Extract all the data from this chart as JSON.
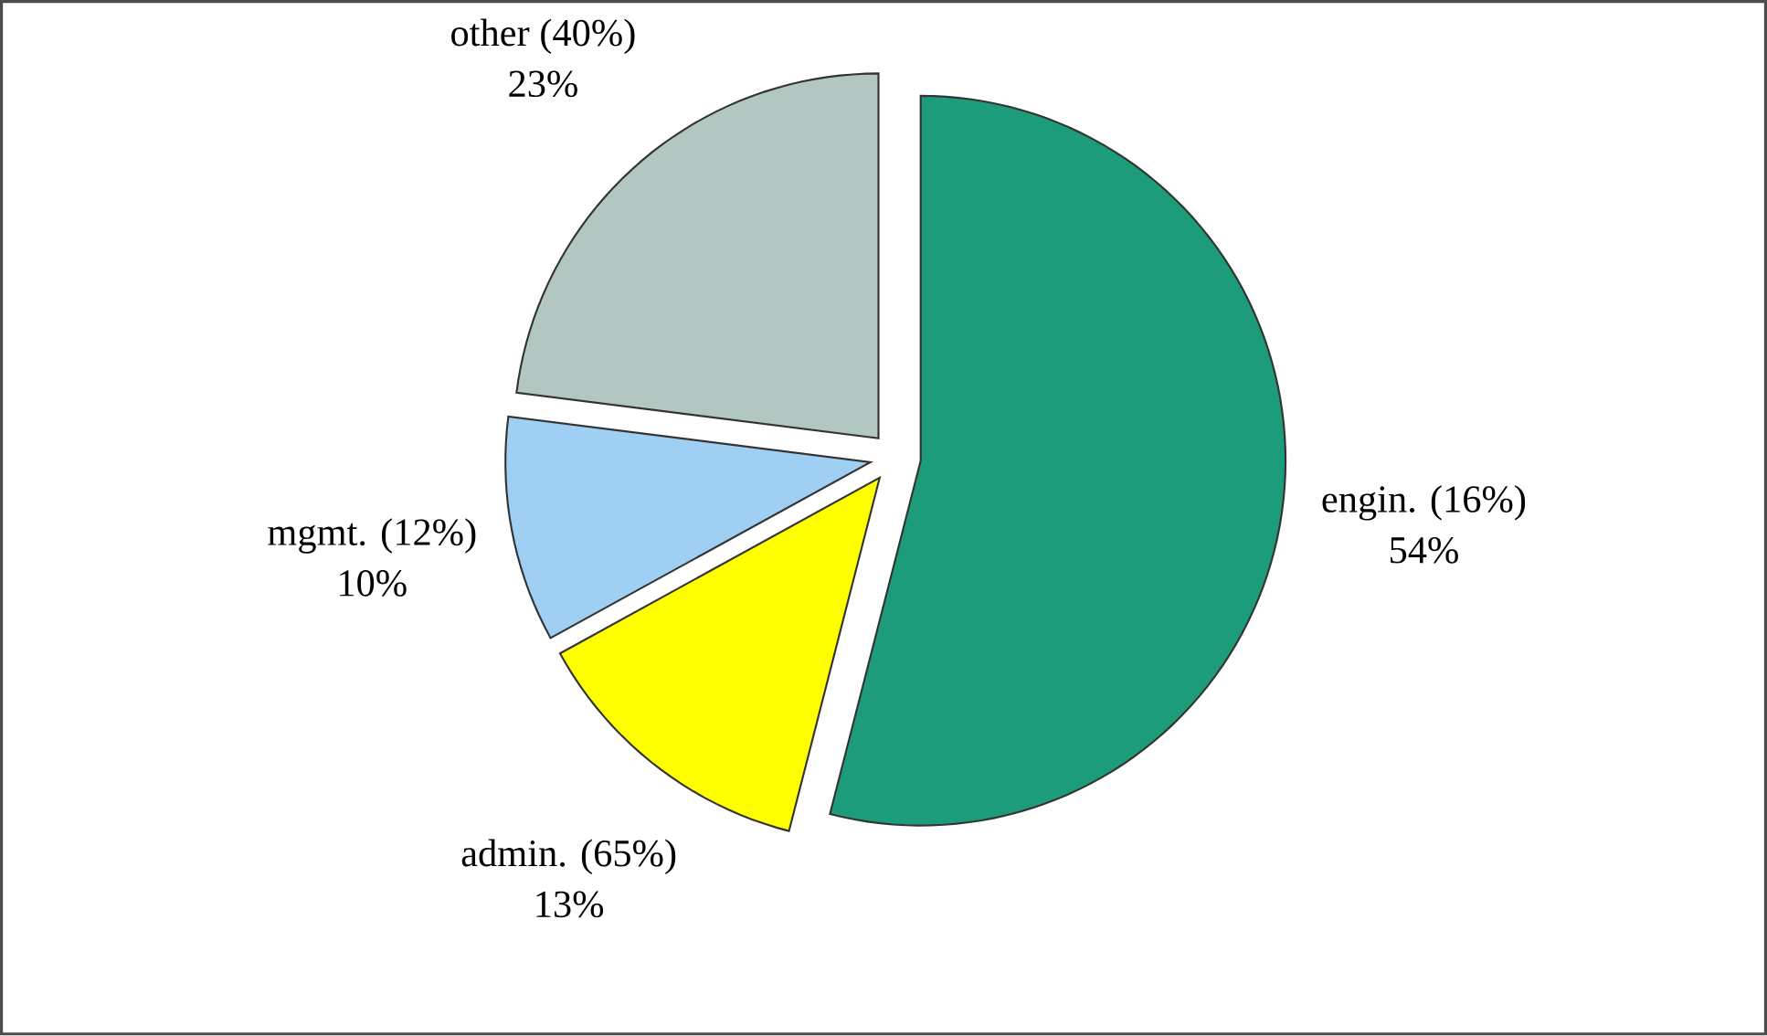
{
  "chart_data": {
    "type": "pie",
    "categories": [
      "engin. (16%)",
      "admin. (65%)",
      "mgmt. (12%)",
      "other (40%)"
    ],
    "values": [
      54,
      13,
      10,
      23
    ],
    "value_labels": [
      "54%",
      "13%",
      "10%",
      "23%"
    ],
    "colors": [
      "#1c9c78",
      "#ffff00",
      "#9fcff2",
      "#b2c6c2"
    ]
  }
}
